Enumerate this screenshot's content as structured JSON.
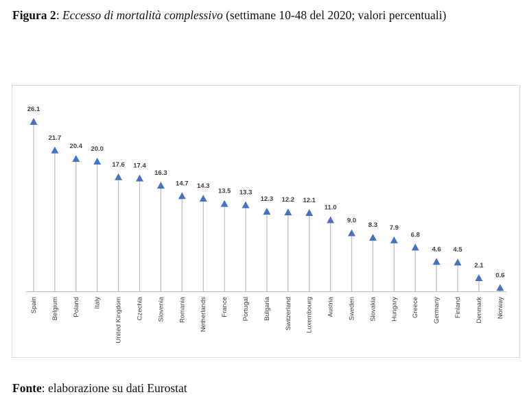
{
  "caption": {
    "label": "Figura 2",
    "title": "Eccesso di mortalità complessivo",
    "subtitle": "(settimane 10-48 del 2020; valori percentuali)"
  },
  "source": {
    "label": "Fonte",
    "text": "elaborazione su dati Eurostat"
  },
  "colors": {
    "marker": "#4472C4",
    "stem": "#bfbfbf",
    "text": "#404040"
  },
  "chart_data": {
    "type": "lollipop",
    "marker_shape": "triangle",
    "title": "",
    "xlabel": "",
    "ylabel": "",
    "ylim": [
      0,
      28
    ],
    "grid": false,
    "legend": "none",
    "categories": [
      "Spain",
      "Belgium",
      "Poland",
      "Italy",
      "United Kingdom",
      "Czechia",
      "Slovenia",
      "Romania",
      "Netherlands",
      "France",
      "Portugal",
      "Bulgaria",
      "Switzerland",
      "Luxembourg",
      "Austria",
      "Sweden",
      "Slovakia",
      "Hungary",
      "Greece",
      "Germany",
      "Finland",
      "Denmark",
      "Norway"
    ],
    "values": [
      26.1,
      21.7,
      20.4,
      20.0,
      17.6,
      17.4,
      16.3,
      14.7,
      14.3,
      13.5,
      13.3,
      12.3,
      12.2,
      12.1,
      11.0,
      9.0,
      8.3,
      7.9,
      6.8,
      4.6,
      4.5,
      2.1,
      0.6
    ],
    "value_labels": [
      "26.1",
      "21.7",
      "20.4",
      "20.0",
      "17.6",
      "17.4",
      "16.3",
      "14.7",
      "14.3",
      "13.5",
      "13.3",
      "12.3",
      "12.2",
      "12.1",
      "11.0",
      "9.0",
      "8.3",
      "7.9",
      "6.8",
      "4.6",
      "4.5",
      "2.1",
      "0.6"
    ]
  }
}
